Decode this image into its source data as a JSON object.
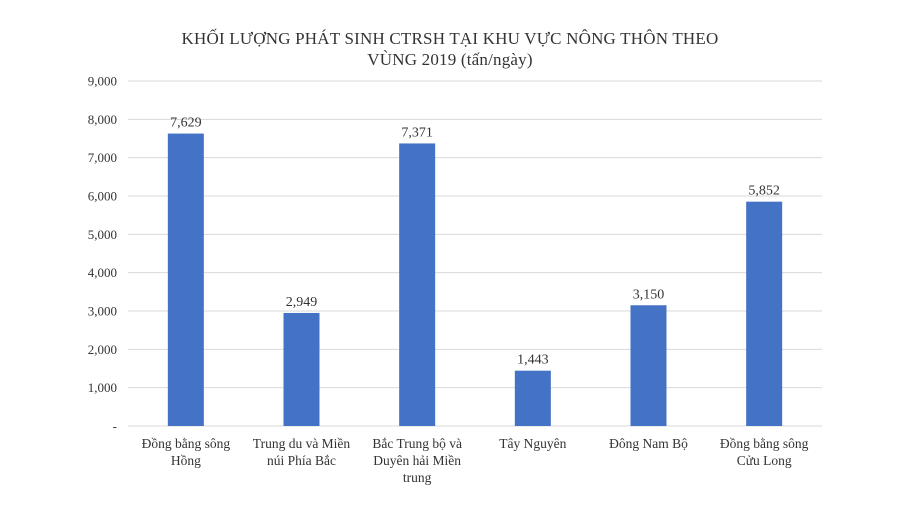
{
  "chart_data": {
    "type": "bar",
    "title_lines": [
      "KHỐI LƯỢNG PHÁT SINH CTRSH TẠI KHU VỰC NÔNG THÔN THEO",
      "VÙNG 2019  (tấn/ngày)"
    ],
    "categories": [
      [
        "Đồng bằng sông",
        "Hồng"
      ],
      [
        "Trung du và Miền",
        "núi Phía Bắc"
      ],
      [
        "Bắc Trung bộ và",
        "Duyên hải Miền",
        "trung"
      ],
      [
        "Tây Nguyên"
      ],
      [
        "Đông Nam Bộ"
      ],
      [
        "Đồng bằng sông",
        "Cửu Long"
      ]
    ],
    "values": [
      7629,
      2949,
      7371,
      1443,
      3150,
      5852
    ],
    "value_labels": [
      "7,629",
      "2,949",
      "7,371",
      "1,443",
      "3,150",
      "5,852"
    ],
    "ylim": [
      0,
      9000
    ],
    "yticks": [
      0,
      1000,
      2000,
      3000,
      4000,
      5000,
      6000,
      7000,
      8000,
      9000
    ],
    "ytick_labels": [
      "-",
      "1,000",
      "2,000",
      "3,000",
      "4,000",
      "5,000",
      "6,000",
      "7,000",
      "8,000",
      "9,000"
    ],
    "grid": true,
    "bar_color": "#4472C4",
    "grid_color": "#d9d9d9"
  }
}
